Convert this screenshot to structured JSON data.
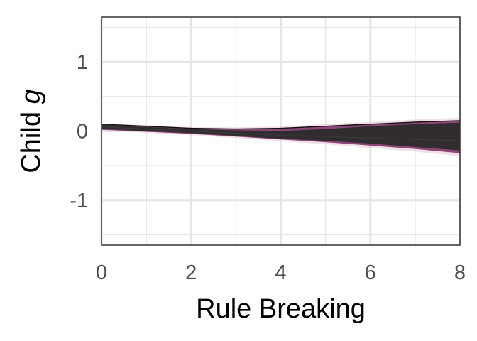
{
  "chart_data": {
    "type": "line",
    "xlabel": "Rule Breaking",
    "ylabel_prefix": "Child ",
    "ylabel_var": "g",
    "xlim": [
      0,
      8
    ],
    "ylim": [
      -1.65,
      1.65
    ],
    "x_ticks": [
      0,
      2,
      4,
      6,
      8
    ],
    "x_tick_labels": [
      "0",
      "2",
      "4",
      "6",
      "8"
    ],
    "x_minor_grid": [
      1,
      3,
      5,
      7
    ],
    "y_ticks": [
      -1,
      0,
      1
    ],
    "y_tick_labels": [
      "-1",
      "0",
      "1"
    ],
    "y_minor_grid": [
      -1.5,
      -0.5,
      0.5,
      1.5
    ],
    "grid": true,
    "x": [
      0,
      1,
      2,
      3,
      4,
      5,
      6,
      7,
      8
    ],
    "band_outer_upper": [
      0.1,
      0.07,
      0.04,
      0.03,
      0.04,
      0.07,
      0.1,
      0.13,
      0.15
    ],
    "band_outer_lower": [
      0.02,
      -0.01,
      -0.04,
      -0.08,
      -0.12,
      -0.16,
      -0.21,
      -0.26,
      -0.32
    ],
    "band_inner_upper": [
      0.09,
      0.06,
      0.03,
      0.01,
      0.0,
      0.03,
      0.07,
      0.1,
      0.12
    ],
    "band_inner_lower": [
      0.03,
      0.0,
      -0.03,
      -0.07,
      -0.11,
      -0.14,
      -0.18,
      -0.23,
      -0.28
    ],
    "central_line": [
      0.06,
      0.03,
      0.0,
      -0.03,
      -0.06,
      -0.08,
      -0.1,
      -0.12,
      -0.14
    ],
    "colors": {
      "inner_band": "#2b2b2b",
      "outer_band": "#7a2a62",
      "outer_band_light": "#d9a7bf",
      "edge_line": "#111111",
      "grid": "#e6e6e6",
      "panel_border": "#333333"
    }
  }
}
